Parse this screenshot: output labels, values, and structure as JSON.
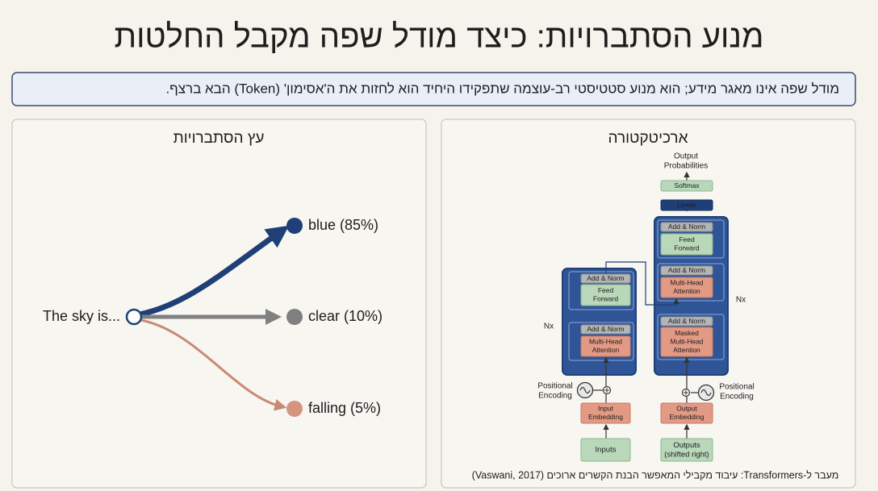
{
  "title": "מנוע הסתברויות: כיצד מודל שפה מקבל החלטות",
  "subtitle": "מודל שפה אינו מאגר מידע; הוא מנוע סטטיסטי רב-עוצמה שתפקידו היחיד הוא לחזות את ה'אסימון' (Token) הבא ברצף.",
  "tree_panel": {
    "title": "עץ הסתברויות",
    "root": "The sky is...",
    "branches": [
      {
        "label": "blue (85%)"
      },
      {
        "label": "clear (10%)"
      },
      {
        "label": "falling (5%)"
      }
    ]
  },
  "architecture_panel": {
    "title": "ארכיטקטורה",
    "nodes": [
      {
        "label": [
          "Output",
          "Probabilities"
        ]
      },
      {
        "label": [
          "Softmax"
        ]
      },
      {
        "label": [
          "Linear"
        ]
      },
      {
        "label": [
          "Add & Norm"
        ]
      },
      {
        "label": [
          "Feed",
          "Forward"
        ]
      },
      {
        "label": [
          "Add & Norm"
        ]
      },
      {
        "label": [
          "Multi-Head",
          "Attention"
        ]
      },
      {
        "label": [
          "Add & Norm"
        ]
      },
      {
        "label": [
          "Masked",
          "Multi-Head",
          "Attention"
        ]
      },
      {
        "label": [
          "Add & Norm"
        ]
      },
      {
        "label": [
          "Feed",
          "Forward"
        ]
      },
      {
        "label": [
          "Add & Norm"
        ]
      },
      {
        "label": [
          "Multi-Head",
          "Attention"
        ]
      },
      {
        "label": [
          "Input",
          "Embedding"
        ]
      },
      {
        "label": [
          "Output",
          "Embedding"
        ]
      },
      {
        "label": [
          "Inputs"
        ]
      },
      {
        "label": [
          "Outputs",
          "(shifted right)"
        ]
      },
      {
        "label": [
          "Positional",
          "Encoding"
        ]
      },
      {
        "label": [
          "Positional",
          "Encoding"
        ]
      },
      {
        "label": [
          "Nx"
        ]
      },
      {
        "label": [
          "Nx"
        ]
      }
    ],
    "caption": "מעבר ל-Transformers: עיבוד מקבילי המאפשר הבנת הקשרים ארוכים (Vaswani, 2017)"
  }
}
